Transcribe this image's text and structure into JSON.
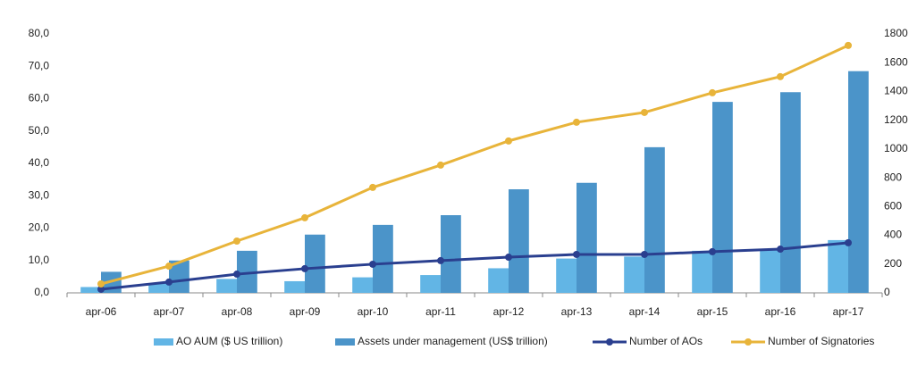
{
  "chart_data": {
    "type": "bar-line",
    "categories": [
      "apr-06",
      "apr-07",
      "apr-08",
      "apr-09",
      "apr-10",
      "apr-11",
      "apr-12",
      "apr-13",
      "apr-14",
      "apr-15",
      "apr-16",
      "apr-17"
    ],
    "series": [
      {
        "name": "AO AUM ($ US trillion)",
        "type": "bar",
        "color": "#62b5e5",
        "values": [
          1.8,
          3,
          4.3,
          3.6,
          4.8,
          5.5,
          7.6,
          10.6,
          11.2,
          13,
          13.5,
          16.3
        ]
      },
      {
        "name": "Assets under management (US$ trillion)",
        "type": "bar",
        "color": "#4b94c9",
        "values": [
          6.5,
          10,
          13,
          18,
          21,
          24,
          32,
          34,
          45,
          59,
          62,
          68.5
        ]
      },
      {
        "name": "Number of AOs",
        "type": "line",
        "axis": "y2",
        "color": "#2a3f8f",
        "values": [
          25,
          75,
          130,
          168,
          199,
          224,
          248,
          267,
          267,
          286,
          304,
          348
        ]
      },
      {
        "name": "Number of Signatories",
        "type": "line",
        "axis": "y2",
        "color": "#e8b43a",
        "values": [
          62,
          186,
          360,
          522,
          733,
          888,
          1056,
          1186,
          1254,
          1391,
          1503,
          1720
        ]
      }
    ],
    "ylim": [
      0,
      80
    ],
    "yticks": [
      {
        "value": 0,
        "label": "0,0"
      },
      {
        "value": 10,
        "label": "10,0"
      },
      {
        "value": 20,
        "label": "20,0"
      },
      {
        "value": 30,
        "label": "30,0"
      },
      {
        "value": 40,
        "label": "40,0"
      },
      {
        "value": 50,
        "label": "50,0"
      },
      {
        "value": 60,
        "label": "60,0"
      },
      {
        "value": 70,
        "label": "70,0"
      },
      {
        "value": 80,
        "label": "80,0"
      }
    ],
    "y2lim": [
      0,
      1800
    ],
    "y2ticks": [
      0,
      200,
      400,
      600,
      800,
      1000,
      1200,
      1400,
      1600,
      1800
    ],
    "grid": false
  }
}
